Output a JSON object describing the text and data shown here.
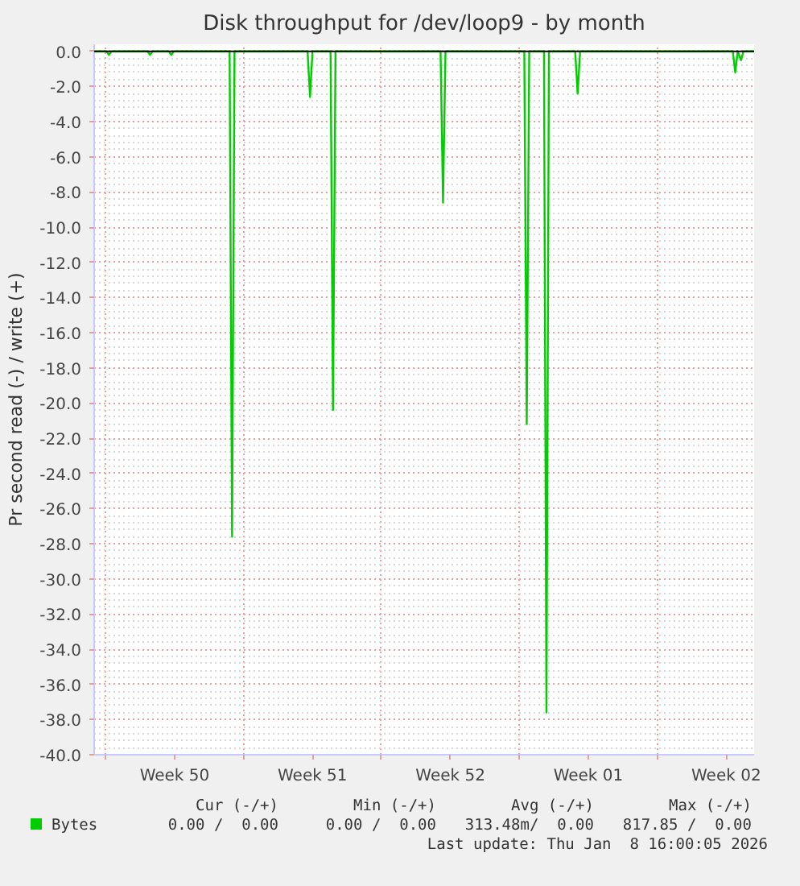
{
  "chart_data": {
    "type": "line",
    "title": "Disk throughput for /dev/loop9 - by month",
    "ylabel": "Pr second read (-) / write (+)",
    "x": [
      "2025-12-07T10:00",
      "2025-12-08T01:00",
      "2025-12-08T04:00",
      "2025-12-08T07:00",
      "2025-12-10T03:00",
      "2025-12-10T06:00",
      "2025-12-10T09:00",
      "2025-12-11T05:00",
      "2025-12-11T08:00",
      "2025-12-11T11:00",
      "2025-12-14T07:00",
      "2025-12-14T10:00",
      "2025-12-14T13:00",
      "2025-12-18T06:00",
      "2025-12-18T09:00",
      "2025-12-18T12:00",
      "2025-12-19T10:00",
      "2025-12-19T13:00",
      "2025-12-19T16:00",
      "2025-12-25T00:00",
      "2025-12-25T03:00",
      "2025-12-25T06:00",
      "2025-12-29T06:00",
      "2025-12-29T09:00",
      "2025-12-29T12:00",
      "2025-12-30T06:00",
      "2025-12-30T09:00",
      "2025-12-30T12:00",
      "2025-12-31T20:00",
      "2025-12-31T23:00",
      "2026-01-01T02:00",
      "2026-01-08T20:00",
      "2026-01-08T23:00",
      "2026-01-09T02:00",
      "2026-01-09T06:00",
      "2026-01-09T09:00",
      "2026-01-09T22:00"
    ],
    "series": [
      {
        "name": "Bytes",
        "color": "#00cc00",
        "values": [
          0,
          0,
          -0.2,
          0,
          0,
          -0.2,
          0,
          0,
          -0.2,
          0,
          0,
          -27.6,
          0,
          0,
          -2.6,
          0,
          0,
          -20.4,
          0,
          0,
          -8.6,
          0,
          0,
          -21.2,
          0,
          0,
          -37.6,
          0,
          0,
          -2.4,
          0,
          0,
          -1.2,
          0,
          -0.5,
          0,
          0
        ]
      }
    ],
    "xlim": [
      "2025-12-07T10:00",
      "2026-01-09T22:00"
    ],
    "xticks": [
      {
        "value": "2025-12-08",
        "label": null
      },
      {
        "value": "2025-12-11T12:00",
        "label": "Week 50"
      },
      {
        "value": "2025-12-15",
        "label": null
      },
      {
        "value": "2025-12-18T12:00",
        "label": "Week 51"
      },
      {
        "value": "2025-12-22",
        "label": null
      },
      {
        "value": "2025-12-25T12:00",
        "label": "Week 52"
      },
      {
        "value": "2025-12-29",
        "label": null
      },
      {
        "value": "2026-01-01T12:00",
        "label": "Week 01"
      },
      {
        "value": "2026-01-05",
        "label": null
      },
      {
        "value": "2026-01-08T12:00",
        "label": "Week 02"
      }
    ],
    "ylim": [
      -40,
      0.4
    ],
    "yticks": [
      {
        "value": 0,
        "label": "0.0"
      },
      {
        "value": -2,
        "label": "-2.0"
      },
      {
        "value": -4,
        "label": "-4.0"
      },
      {
        "value": -6,
        "label": "-6.0"
      },
      {
        "value": -8,
        "label": "-8.0"
      },
      {
        "value": -10,
        "label": "-10.0"
      },
      {
        "value": -12,
        "label": "-12.0"
      },
      {
        "value": -14,
        "label": "-14.0"
      },
      {
        "value": -16,
        "label": "-16.0"
      },
      {
        "value": -18,
        "label": "-18.0"
      },
      {
        "value": -20,
        "label": "-20.0"
      },
      {
        "value": -22,
        "label": "-22.0"
      },
      {
        "value": -24,
        "label": "-24.0"
      },
      {
        "value": -26,
        "label": "-26.0"
      },
      {
        "value": -28,
        "label": "-28.0"
      },
      {
        "value": -30,
        "label": "-30.0"
      },
      {
        "value": -32,
        "label": "-32.0"
      },
      {
        "value": -34,
        "label": "-34.0"
      },
      {
        "value": -36,
        "label": "-36.0"
      },
      {
        "value": -38,
        "label": "-38.0"
      },
      {
        "value": -40,
        "label": "-40.0"
      }
    ],
    "ref_lines": [
      {
        "axis": "y",
        "value": 0,
        "label": null,
        "color": "#000000"
      }
    ],
    "grid": true,
    "legend": "bottom",
    "marker": "none",
    "annotations": [
      "Cur (-/+)",
      "Min (-/+)",
      "Avg (-/+)",
      "Max (-/+)",
      "0.00 /  0.00",
      "0.00 /  0.00",
      "313.48m/  0.00",
      "817.85 /  0.00",
      "Last update: Thu Jan  8 16:00:05 2026"
    ]
  }
}
